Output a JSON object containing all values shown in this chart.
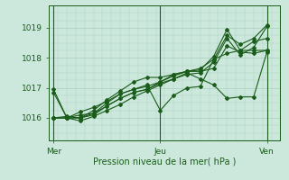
{
  "title": "",
  "xlabel": "Pression niveau de la mer( hPa )",
  "ylabel": "",
  "background_color": "#cce8dc",
  "grid_color": "#aacfbf",
  "line_color": "#1a5c1a",
  "xtick_labels": [
    "Mer",
    "Jeu",
    "Ven"
  ],
  "xtick_positions": [
    0,
    12,
    24
  ],
  "ylim": [
    1015.4,
    1019.5
  ],
  "yticks": [
    1016,
    1017,
    1018,
    1019
  ],
  "xlim": [
    -0.5,
    25.5
  ],
  "lines": [
    [
      0.0,
      1016.85,
      1.5,
      1016.0,
      3.0,
      1016.1,
      4.5,
      1016.15,
      6.0,
      1016.4,
      7.5,
      1016.65,
      9.0,
      1016.85,
      10.5,
      1016.95,
      12.0,
      1017.2,
      13.5,
      1017.45,
      15.0,
      1017.55,
      16.5,
      1017.65,
      18.0,
      1017.95,
      19.5,
      1018.15,
      21.0,
      1018.25,
      22.5,
      1018.25,
      24.0,
      1018.25
    ],
    [
      0.0,
      1016.0,
      1.5,
      1016.0,
      3.0,
      1015.9,
      4.5,
      1016.05,
      6.0,
      1016.25,
      7.5,
      1016.45,
      9.0,
      1016.7,
      10.5,
      1016.9,
      12.0,
      1017.1,
      13.5,
      1017.3,
      15.0,
      1017.5,
      16.5,
      1017.3,
      18.0,
      1017.1,
      19.5,
      1016.65,
      21.0,
      1016.7,
      22.5,
      1016.7,
      24.0,
      1018.2
    ],
    [
      0.0,
      1016.0,
      1.5,
      1016.0,
      3.0,
      1016.0,
      4.5,
      1016.15,
      6.0,
      1016.5,
      7.5,
      1016.8,
      9.0,
      1016.95,
      10.5,
      1017.05,
      12.0,
      1017.2,
      13.5,
      1017.4,
      15.0,
      1017.55,
      16.5,
      1017.55,
      18.0,
      1017.65,
      19.5,
      1018.4,
      21.0,
      1018.2,
      22.5,
      1018.15,
      24.0,
      1018.25
    ],
    [
      0.0,
      1016.0,
      1.5,
      1016.05,
      3.0,
      1016.0,
      4.5,
      1016.1,
      6.0,
      1016.4,
      7.5,
      1016.65,
      9.0,
      1016.85,
      10.5,
      1016.95,
      12.0,
      1017.15,
      13.5,
      1017.3,
      15.0,
      1017.45,
      16.5,
      1017.5,
      18.0,
      1017.85,
      19.5,
      1018.65,
      21.0,
      1018.1,
      22.5,
      1018.35,
      24.0,
      1019.05
    ],
    [
      0.0,
      1016.0,
      1.5,
      1016.0,
      3.0,
      1016.2,
      4.5,
      1016.35,
      6.0,
      1016.55,
      7.5,
      1016.8,
      9.0,
      1016.95,
      10.5,
      1017.1,
      12.0,
      1016.25,
      13.5,
      1016.75,
      15.0,
      1017.0,
      16.5,
      1017.05,
      18.0,
      1017.95,
      19.5,
      1018.75,
      21.0,
      1018.45,
      22.5,
      1018.65,
      24.0,
      1019.1
    ],
    [
      0.0,
      1016.95,
      1.5,
      1016.0,
      3.0,
      1016.0,
      4.5,
      1016.25,
      6.0,
      1016.6,
      7.5,
      1016.9,
      9.0,
      1017.2,
      10.5,
      1017.35,
      12.0,
      1017.35,
      13.5,
      1017.45,
      15.0,
      1017.55,
      16.5,
      1017.6,
      18.0,
      1018.05,
      19.5,
      1018.95,
      21.0,
      1018.25,
      22.5,
      1018.55,
      24.0,
      1018.65
    ]
  ]
}
